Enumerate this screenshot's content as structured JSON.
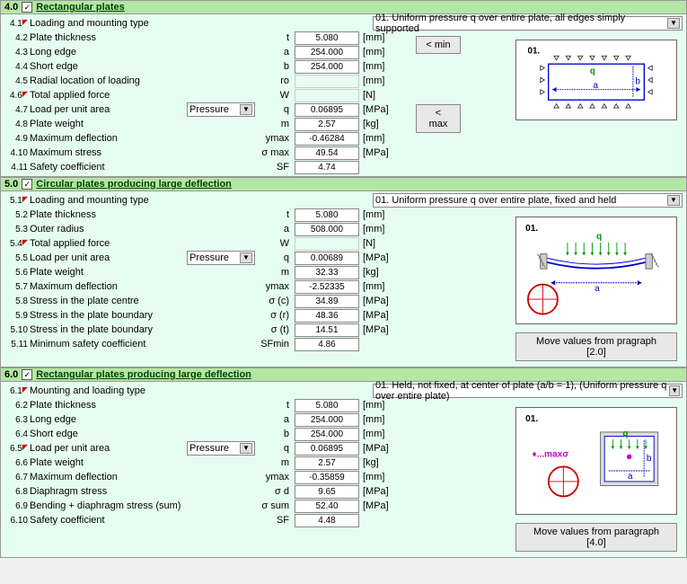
{
  "sections": {
    "s4": {
      "num": "4.0",
      "title": "Rectangular plates",
      "loading_dd": "01. Uniform pressure q over entire plate, all edges simply supported",
      "rows": [
        {
          "n": "4.1",
          "label": "Loading and mounting type",
          "sym": "",
          "val": "",
          "unit": ""
        },
        {
          "n": "4.2",
          "label": "Plate thickness",
          "sym": "t",
          "val": "5.080",
          "unit": "[mm]"
        },
        {
          "n": "4.3",
          "label": "Long edge",
          "sym": "a",
          "val": "254.000",
          "unit": "[mm]"
        },
        {
          "n": "4.4",
          "label": "Short edge",
          "sym": "b",
          "val": "254.000",
          "unit": "[mm]"
        },
        {
          "n": "4.5",
          "label": "Radial location of loading",
          "sym": "ro",
          "val": "",
          "unit": "[mm]"
        },
        {
          "n": "4.6",
          "label": "Total applied force",
          "sym": "W",
          "val": "",
          "unit": "[N]"
        },
        {
          "n": "4.7",
          "label": "Load per unit area",
          "sym": "q",
          "val": "0.06895",
          "unit": "[MPa]",
          "dd": "Pressure"
        },
        {
          "n": "4.8",
          "label": "Plate weight",
          "sym": "m",
          "val": "2.57",
          "unit": "[kg]"
        },
        {
          "n": "4.9",
          "label": "Maximum deflection",
          "sym": "ymax",
          "val": "-0.46284",
          "unit": "[mm]"
        },
        {
          "n": "4.10",
          "label": "Maximum stress",
          "sym": "σ max",
          "val": "49.54",
          "unit": "[MPa]"
        },
        {
          "n": "4.11",
          "label": "Safety coefficient",
          "sym": "SF",
          "val": "4.74",
          "unit": ""
        }
      ],
      "btn_min": "< min",
      "btn_max": "< max",
      "diagram_label": "01."
    },
    "s5": {
      "num": "5.0",
      "title": "Circular plates producing large deflection",
      "loading_dd": "01. Uniform pressure q over entire plate, fixed and held",
      "rows": [
        {
          "n": "5.1",
          "label": "Loading and mounting type",
          "sym": "",
          "val": "",
          "unit": ""
        },
        {
          "n": "5.2",
          "label": "Plate thickness",
          "sym": "t",
          "val": "5.080",
          "unit": "[mm]"
        },
        {
          "n": "5.3",
          "label": "Outer radius",
          "sym": "a",
          "val": "508.000",
          "unit": "[mm]"
        },
        {
          "n": "5.4",
          "label": "Total applied force",
          "sym": "W",
          "val": "",
          "unit": "[N]"
        },
        {
          "n": "5.5",
          "label": "Load per unit area",
          "sym": "q",
          "val": "0.00689",
          "unit": "[MPa]",
          "dd": "Pressure"
        },
        {
          "n": "5.6",
          "label": "Plate weight",
          "sym": "m",
          "val": "32.33",
          "unit": "[kg]"
        },
        {
          "n": "5.7",
          "label": "Maximum deflection",
          "sym": "ymax",
          "val": "-2.52335",
          "unit": "[mm]"
        },
        {
          "n": "5.8",
          "label": "Stress in the plate centre",
          "sym": "σ (c)",
          "val": "34.89",
          "unit": "[MPa]"
        },
        {
          "n": "5.9",
          "label": "Stress in the plate boundary",
          "sym": "σ (r)",
          "val": "48.36",
          "unit": "[MPa]"
        },
        {
          "n": "5.10",
          "label": "Stress in the plate boundary",
          "sym": "σ (t)",
          "val": "14.51",
          "unit": "[MPa]"
        },
        {
          "n": "5.11",
          "label": "Minimum safety coefficient",
          "sym": "SFmin",
          "val": "4.86",
          "unit": ""
        }
      ],
      "btn_move": "Move values from pragraph [2.0]",
      "diagram_label": "01."
    },
    "s6": {
      "num": "6.0",
      "title": "Rectangular plates producing large deflection",
      "loading_dd": "01. Held, not fixed, at center of plate  (a/b = 1), (Uniform pressure q over entire plate)",
      "rows": [
        {
          "n": "6.1",
          "label": "Mounting and loading type",
          "sym": "",
          "val": "",
          "unit": ""
        },
        {
          "n": "6.2",
          "label": "Plate thickness",
          "sym": "t",
          "val": "5.080",
          "unit": "[mm]"
        },
        {
          "n": "6.3",
          "label": "Long edge",
          "sym": "a",
          "val": "254.000",
          "unit": "[mm]"
        },
        {
          "n": "6.4",
          "label": "Short edge",
          "sym": "b",
          "val": "254.000",
          "unit": "[mm]"
        },
        {
          "n": "6.5",
          "label": "Load per unit area",
          "sym": "q",
          "val": "0.06895",
          "unit": "[MPa]",
          "dd": "Pressure"
        },
        {
          "n": "6.6",
          "label": "Plate weight",
          "sym": "m",
          "val": "2.57",
          "unit": "[kg]"
        },
        {
          "n": "6.7",
          "label": "Maximum deflection",
          "sym": "ymax",
          "val": "-0.35859",
          "unit": "[mm]"
        },
        {
          "n": "6.8",
          "label": "Diaphragm stress",
          "sym": "σ d",
          "val": "9.65",
          "unit": "[MPa]"
        },
        {
          "n": "6.9",
          "label": "Bending + diaphragm stress (sum)",
          "sym": "σ sum",
          "val": "52.40",
          "unit": "[MPa]"
        },
        {
          "n": "6.10",
          "label": "Safety coefficient",
          "sym": "SF",
          "val": "4.48",
          "unit": ""
        }
      ],
      "btn_move": "Move values from paragraph [4.0]",
      "diagram_label": "01.",
      "diagram_text": "♦...maxσ"
    }
  }
}
